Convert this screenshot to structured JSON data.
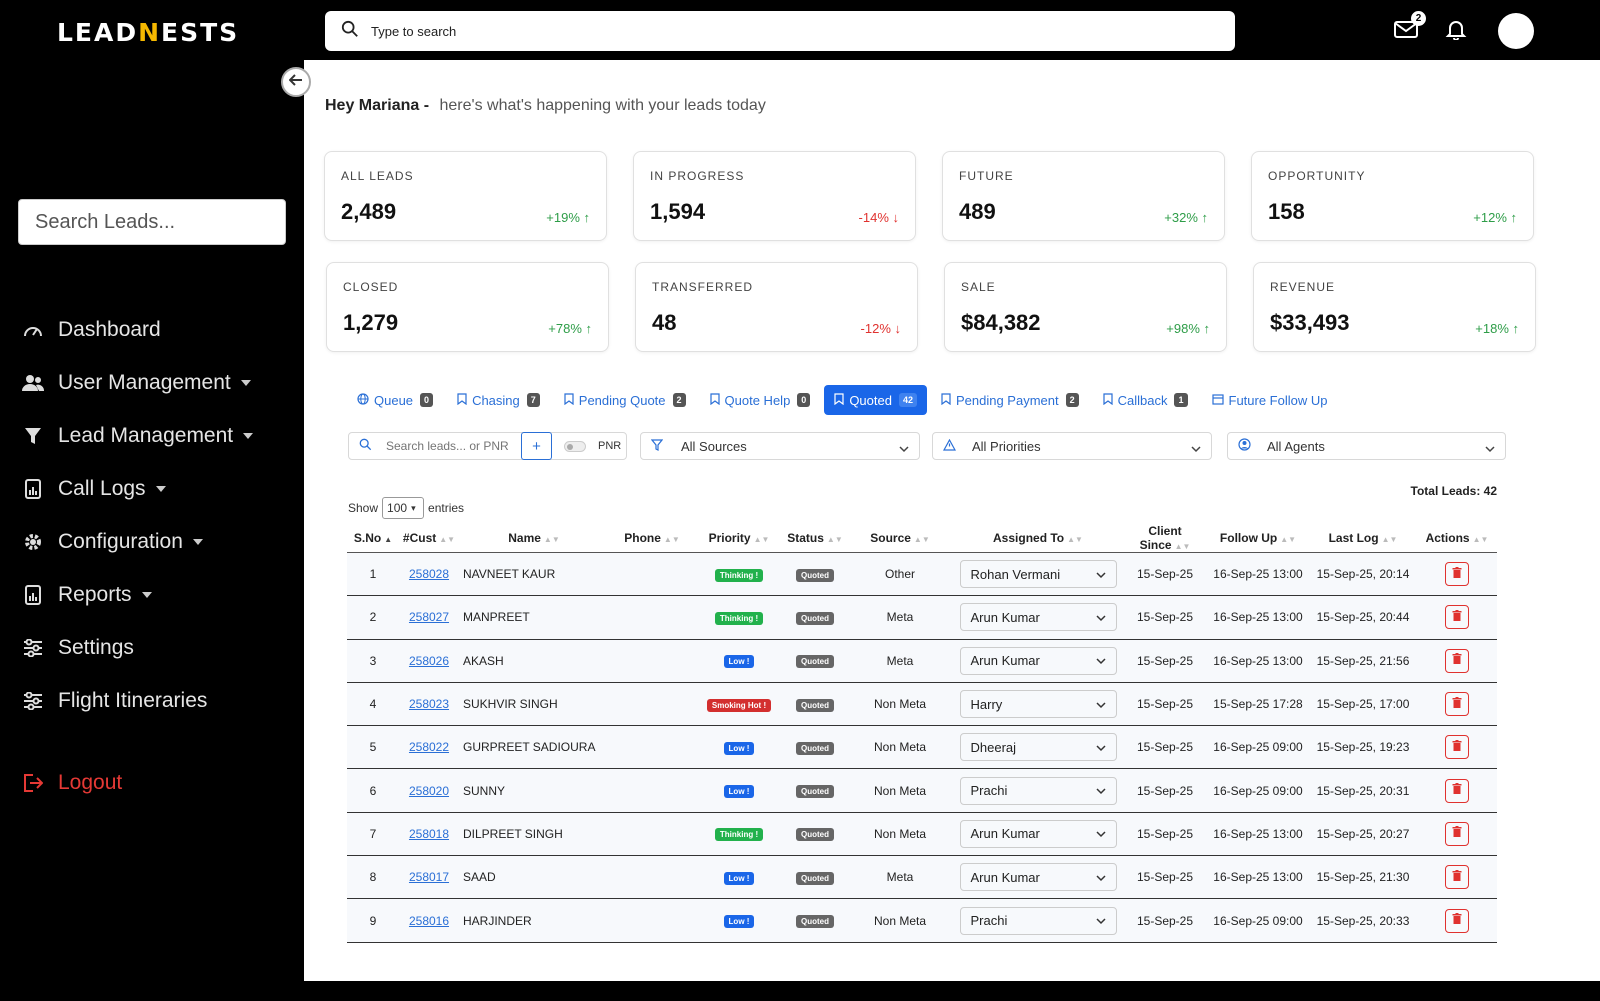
{
  "app": {
    "logo_part1": "LEAD",
    "logo_part2": "N",
    "logo_part3": "ESTS",
    "search_placeholder": "Type to search",
    "mail_count": "2"
  },
  "sidebar": {
    "search_placeholder": "Search Leads...",
    "items": [
      {
        "label": "Dashboard",
        "icon": "dashboard-icon"
      },
      {
        "label": "User Management",
        "icon": "users-icon"
      },
      {
        "label": "Lead Management",
        "icon": "filter-icon"
      },
      {
        "label": "Call Logs",
        "icon": "report-icon"
      },
      {
        "label": "Configuration",
        "icon": "gear-icon"
      },
      {
        "label": "Reports",
        "icon": "report-icon"
      },
      {
        "label": "Settings",
        "icon": "sliders-icon"
      },
      {
        "label": "Flight Itineraries",
        "icon": "sliders-icon"
      }
    ],
    "logout": "Logout"
  },
  "greeting": {
    "name": "Hey Mariana -",
    "sub": "here's what's happening with your leads today"
  },
  "stats": [
    {
      "label": "ALL LEADS",
      "value": "2,489",
      "change": "+19% ↑",
      "trend": "up"
    },
    {
      "label": "IN PROGRESS",
      "value": "1,594",
      "change": "-14% ↓",
      "trend": "down"
    },
    {
      "label": "FUTURE",
      "value": "489",
      "change": "+32% ↑",
      "trend": "up"
    },
    {
      "label": "OPPORTUNITY",
      "value": "158",
      "change": "+12% ↑",
      "trend": "up"
    },
    {
      "label": "CLOSED",
      "value": "1,279",
      "change": "+78% ↑",
      "trend": "up"
    },
    {
      "label": "TRANSFERRED",
      "value": "48",
      "change": "-12% ↓",
      "trend": "down"
    },
    {
      "label": "SALE",
      "value": "$84,382",
      "change": "+98% ↑",
      "trend": "up"
    },
    {
      "label": "REVENUE",
      "value": "$33,493",
      "change": "+18% ↑",
      "trend": "up"
    }
  ],
  "tabs": [
    {
      "label": "Queue",
      "count": "0"
    },
    {
      "label": "Chasing",
      "count": "7"
    },
    {
      "label": "Pending Quote",
      "count": "2"
    },
    {
      "label": "Quote Help",
      "count": "0"
    },
    {
      "label": "Quoted",
      "count": "42"
    },
    {
      "label": "Pending Payment",
      "count": "2"
    },
    {
      "label": "Callback",
      "count": "1"
    },
    {
      "label": "Future Follow Up",
      "count": ""
    }
  ],
  "filters": {
    "search_placeholder": "Search leads... or PNR",
    "add": "+",
    "pnr": "PNR",
    "sources": "All Sources",
    "priorities": "All Priorities",
    "agents": "All Agents"
  },
  "table": {
    "total": "Total Leads: 42",
    "show": "Show",
    "show_value": "100",
    "entries": "entries",
    "headers": [
      "S.No",
      "#Cust",
      "Name",
      "Phone",
      "Priority",
      "Status",
      "Source",
      "Assigned To",
      "Client Since",
      "Follow Up",
      "Last Log",
      "Actions"
    ],
    "rows": [
      {
        "sno": "1",
        "cust": "258028",
        "name": "NAVNEET KAUR",
        "phone": "",
        "priority": "Thinking !",
        "pclass": "p-think",
        "status": "Quoted",
        "source": "Other",
        "agent": "Rohan Vermani",
        "since": "15-Sep-25",
        "follow": "16-Sep-25 13:00",
        "last": "15-Sep-25, 20:14"
      },
      {
        "sno": "2",
        "cust": "258027",
        "name": "MANPREET",
        "phone": "",
        "priority": "Thinking !",
        "pclass": "p-think",
        "status": "Quoted",
        "source": "Meta",
        "agent": "Arun Kumar",
        "since": "15-Sep-25",
        "follow": "16-Sep-25 13:00",
        "last": "15-Sep-25, 20:44"
      },
      {
        "sno": "3",
        "cust": "258026",
        "name": "AKASH",
        "phone": "",
        "priority": "Low !",
        "pclass": "p-low",
        "status": "Quoted",
        "source": "Meta",
        "agent": "Arun Kumar",
        "since": "15-Sep-25",
        "follow": "16-Sep-25 13:00",
        "last": "15-Sep-25, 21:56"
      },
      {
        "sno": "4",
        "cust": "258023",
        "name": "SUKHVIR SINGH",
        "phone": "",
        "priority": "Smoking Hot !",
        "pclass": "p-hot",
        "status": "Quoted",
        "source": "Non Meta",
        "agent": "Harry",
        "since": "15-Sep-25",
        "follow": "15-Sep-25 17:28",
        "last": "15-Sep-25, 17:00"
      },
      {
        "sno": "5",
        "cust": "258022",
        "name": "GURPREET SADIOURA",
        "phone": "",
        "priority": "Low !",
        "pclass": "p-low",
        "status": "Quoted",
        "source": "Non Meta",
        "agent": "Dheeraj",
        "since": "15-Sep-25",
        "follow": "16-Sep-25 09:00",
        "last": "15-Sep-25, 19:23"
      },
      {
        "sno": "6",
        "cust": "258020",
        "name": "SUNNY",
        "phone": "",
        "priority": "Low !",
        "pclass": "p-low",
        "status": "Quoted",
        "source": "Non Meta",
        "agent": "Prachi",
        "since": "15-Sep-25",
        "follow": "16-Sep-25 09:00",
        "last": "15-Sep-25, 20:31"
      },
      {
        "sno": "7",
        "cust": "258018",
        "name": "DILPREET SINGH",
        "phone": "",
        "priority": "Thinking !",
        "pclass": "p-think",
        "status": "Quoted",
        "source": "Non Meta",
        "agent": "Arun Kumar",
        "since": "15-Sep-25",
        "follow": "16-Sep-25 13:00",
        "last": "15-Sep-25, 20:27"
      },
      {
        "sno": "8",
        "cust": "258017",
        "name": "SAAD",
        "phone": "",
        "priority": "Low !",
        "pclass": "p-low",
        "status": "Quoted",
        "source": "Meta",
        "agent": "Arun Kumar",
        "since": "15-Sep-25",
        "follow": "16-Sep-25 13:00",
        "last": "15-Sep-25, 21:30"
      },
      {
        "sno": "9",
        "cust": "258016",
        "name": "HARJINDER",
        "phone": "",
        "priority": "Low !",
        "pclass": "p-low",
        "status": "Quoted",
        "source": "Non Meta",
        "agent": "Prachi",
        "since": "15-Sep-25",
        "follow": "16-Sep-25 09:00",
        "last": "15-Sep-25, 20:33"
      }
    ]
  },
  "colors": {
    "accent": "#1a66e8",
    "up": "#2e9d48",
    "down": "#e0322f"
  }
}
